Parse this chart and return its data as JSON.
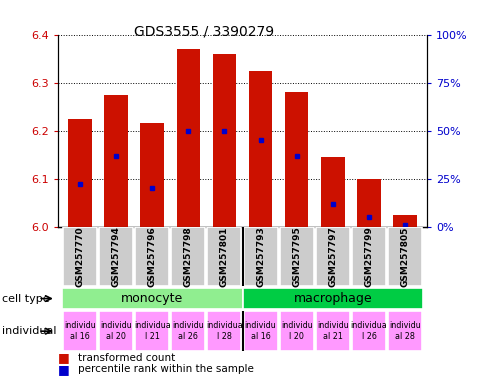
{
  "title": "GDS3555 / 3390279",
  "samples": [
    "GSM257770",
    "GSM257794",
    "GSM257796",
    "GSM257798",
    "GSM257801",
    "GSM257793",
    "GSM257795",
    "GSM257797",
    "GSM257799",
    "GSM257805"
  ],
  "red_values": [
    6.225,
    6.275,
    6.215,
    6.37,
    6.36,
    6.325,
    6.28,
    6.145,
    6.1,
    6.025
  ],
  "blue_values_pct": [
    22,
    37,
    20,
    50,
    50,
    45,
    37,
    12,
    5,
    1
  ],
  "ylim_left": [
    6.0,
    6.4
  ],
  "ylim_right": [
    0,
    100
  ],
  "yticks_left": [
    6.0,
    6.1,
    6.2,
    6.3,
    6.4
  ],
  "yticks_right": [
    0,
    25,
    50,
    75,
    100
  ],
  "ytick_labels_right": [
    "0%",
    "25%",
    "50%",
    "75%",
    "100%"
  ],
  "cell_types": [
    {
      "label": "monocyte",
      "start": 0,
      "end": 5,
      "color": "#90EE90"
    },
    {
      "label": "macrophage",
      "start": 5,
      "end": 10,
      "color": "#00CC44"
    }
  ],
  "individual_labels_short": [
    "individu\nal 16",
    "individu\nal 20",
    "individua\nl 21",
    "individu\nal 26",
    "individua\nl 28",
    "individu\nal 16",
    "individu\nl 20",
    "individu\nal 21",
    "individua\nl 26",
    "individu\nal 28"
  ],
  "individual_color": "#FF99FF",
  "bar_color_red": "#CC1100",
  "bar_color_blue": "#0000CC",
  "bar_width": 0.65,
  "bg_color_samples": "#CCCCCC",
  "left_label_color": "#CC0000",
  "right_label_color": "#0000CC"
}
